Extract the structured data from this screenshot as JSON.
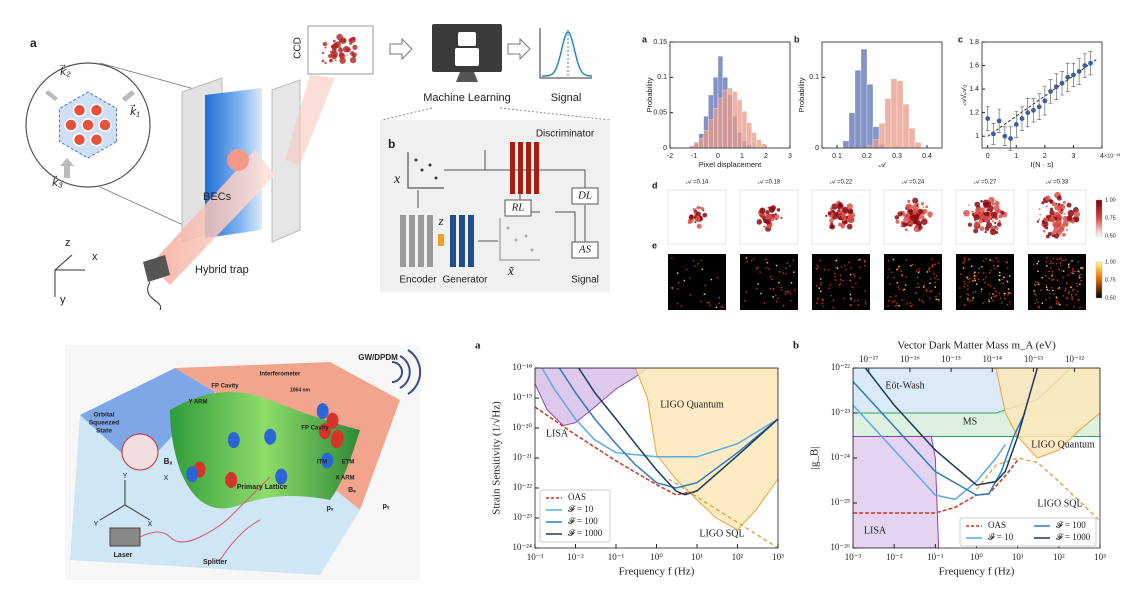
{
  "schematic": {
    "panel_a": "a",
    "k1": "k⃗₁",
    "k2": "k⃗₂",
    "k3": "k⃗₃",
    "becs": "BECs",
    "hybrid_trap": "Hybrid trap",
    "ccd": "CCD",
    "machine_learning": "Machine Learning",
    "signal": "Signal",
    "axis_z": "z",
    "axis_x": "x",
    "axis_y": "y",
    "panel_b": "b",
    "input_x": "x",
    "latent_z": "z",
    "output_x": "x̃",
    "discriminator": "Discriminator",
    "rl": "RL",
    "dl": "DL",
    "as": "AS",
    "encoder": "Encoder",
    "generator": "Generator",
    "signal_b": "Signal"
  },
  "hist_a": {
    "type": "histogram",
    "panel": "a",
    "xlabel": "Pixel displacement",
    "ylabel": "Probability",
    "xlim": [
      -2,
      3
    ],
    "xticks": [
      -2,
      -1,
      0,
      1,
      2,
      3
    ],
    "ylim": [
      0,
      0.15
    ],
    "yticks": [
      0,
      0.05,
      0.1,
      0.15
    ],
    "bins": [
      -1.2,
      -1,
      -0.8,
      -0.6,
      -0.4,
      -0.2,
      0,
      0.2,
      0.4,
      0.6,
      0.8,
      1,
      1.2,
      1.4,
      1.6,
      1.8,
      2
    ],
    "series": [
      {
        "color": "#5b6fb3",
        "values": [
          0.002,
          0.008,
          0.02,
          0.045,
          0.075,
          0.1,
          0.13,
          0.1,
          0.075,
          0.045,
          0.022,
          0.01,
          0.004,
          0.001,
          0,
          0
        ]
      },
      {
        "color": "#e8998a",
        "values": [
          0.003,
          0.007,
          0.014,
          0.025,
          0.04,
          0.056,
          0.07,
          0.082,
          0.085,
          0.08,
          0.068,
          0.052,
          0.036,
          0.022,
          0.012,
          0.006
        ]
      }
    ]
  },
  "hist_b": {
    "type": "histogram",
    "panel": "b",
    "xlabel": "𝒜",
    "ylabel": "Probability",
    "xlim": [
      0.05,
      0.45
    ],
    "xticks": [
      0.1,
      0.2,
      0.3,
      0.4
    ],
    "ylim": [
      0,
      0.15
    ],
    "yticks": [
      0,
      0.1
    ],
    "bins": [
      0.12,
      0.14,
      0.16,
      0.18,
      0.2,
      0.22,
      0.24,
      0.26,
      0.28,
      0.3,
      0.32,
      0.34,
      0.36,
      0.38
    ],
    "series": [
      {
        "color": "#5b6fb3",
        "values": [
          0.01,
          0.05,
          0.11,
          0.14,
          0.09,
          0.03,
          0.005,
          0,
          0,
          0,
          0,
          0,
          0
        ]
      },
      {
        "color": "#e8998a",
        "values": [
          0,
          0,
          0,
          0,
          0.003,
          0.012,
          0.035,
          0.07,
          0.098,
          0.095,
          0.062,
          0.028,
          0.008
        ]
      }
    ]
  },
  "scatter_c": {
    "type": "scatter",
    "panel": "c",
    "xlabel": "I(N · s)",
    "x_exponent": "×10⁻²⁸",
    "ylabel": "𝒜ₗ/𝒜₀",
    "xlim": [
      -0.2,
      4
    ],
    "xticks": [
      0,
      1,
      2,
      3,
      4
    ],
    "ylim": [
      0.9,
      1.8
    ],
    "yticks": [
      1,
      1.2,
      1.4,
      1.6,
      1.8
    ],
    "color": "#3f5e9c",
    "x": [
      0,
      0.2,
      0.4,
      0.6,
      0.8,
      1,
      1.2,
      1.4,
      1.6,
      1.8,
      2,
      2.2,
      2.4,
      2.6,
      2.8,
      3,
      3.2,
      3.4,
      3.6
    ],
    "values": [
      1.15,
      1.02,
      1.13,
      1.0,
      0.98,
      1.1,
      1.15,
      1.2,
      1.22,
      1.25,
      1.3,
      1.38,
      1.42,
      1.45,
      1.5,
      1.52,
      1.55,
      1.6,
      1.62
    ],
    "errors": [
      0.1,
      0.09,
      0.1,
      0.08,
      0.1,
      0.11,
      0.1,
      0.12,
      0.1,
      0.11,
      0.12,
      0.1,
      0.11,
      0.1,
      0.12,
      0.1,
      0.11,
      0.1,
      0.1
    ],
    "fit": {
      "x": [
        0,
        3.8
      ],
      "values": [
        1.0,
        1.65
      ]
    }
  },
  "thumbnails": {
    "panel_d": "d",
    "panel_e": "e",
    "labels": [
      "𝒜 =0.14",
      "𝒜 =0.18",
      "𝒜 =0.22",
      "𝒜 =0.24",
      "𝒜 =0.27",
      "𝒜 =0.33"
    ],
    "colorbar_d": [
      "1.00",
      "0.75",
      "0.50"
    ],
    "colorbar_e": [
      "1.00",
      "0.75",
      "0.50"
    ]
  },
  "illustration": {
    "gw": "GW/DPDM",
    "y_arm": "Y ARM",
    "fp_cavity_1": "FP Cavity",
    "interferometer": "Interferometer",
    "wavelength": "1064 nm",
    "fp_cavity_2": "FP Cavity",
    "itm": "ITM",
    "etm": "ETM",
    "x_arm": "X ARM",
    "orbital": [
      "Orbital",
      "Squeezed",
      "State"
    ],
    "bx": "Bₓ",
    "primary_lattice": "Primary Lattice",
    "bs": "Bₛ",
    "px": "pₓ",
    "py": "pᵧ",
    "laser": "Laser",
    "splitter": "Splitter",
    "axes": [
      "Y",
      "X",
      "Y",
      "X"
    ]
  },
  "strain_chart": {
    "type": "line",
    "panel": "a",
    "xlabel": "Frequency f (Hz)",
    "ylabel": "Strain Sensitivity (1/√Hz)",
    "log_x": true,
    "log_y": true,
    "xlim": [
      0.001,
      1000
    ],
    "ylim": [
      1e-24,
      1e-18
    ],
    "xticks": [
      {
        "value": 0.001,
        "label": "10⁻³"
      },
      {
        "value": 0.01,
        "label": "10⁻²"
      },
      {
        "value": 0.1,
        "label": "10⁻¹"
      },
      {
        "value": 1,
        "label": "10⁰"
      },
      {
        "value": 10,
        "label": "10¹"
      },
      {
        "value": 100,
        "label": "10²"
      },
      {
        "value": 1000,
        "label": "10³"
      }
    ],
    "yticks": [
      {
        "value": 1e-24,
        "label": "10⁻²⁴"
      },
      {
        "value": 1e-23,
        "label": "10⁻²³"
      },
      {
        "value": 1e-22,
        "label": "10⁻²²"
      },
      {
        "value": 1e-21,
        "label": "10⁻²¹"
      },
      {
        "value": 1e-20,
        "label": "10⁻²⁰"
      },
      {
        "value": 1e-19,
        "label": "10⁻¹⁹"
      },
      {
        "value": 1e-18,
        "label": "10⁻¹⁸"
      }
    ],
    "bounds": [
      {
        "name": "LISA",
        "style": "area",
        "color": "#8e44ad",
        "fill": "#d7bfe8",
        "x": [
          0.001,
          0.002,
          0.005,
          0.01,
          0.03,
          0.1,
          0.3,
          0.6,
          0.6,
          0.001
        ],
        "values": [
          3e-19,
          4e-20,
          1.2e-20,
          1.5e-20,
          5e-20,
          2e-19,
          5e-19,
          1e-18,
          1e-18,
          1e-18
        ]
      },
      {
        "name": "LIGO Quantum",
        "style": "area",
        "color": "#e8a33a",
        "fill": "#fde7b8",
        "x": [
          0.3,
          0.6,
          1,
          3,
          10,
          30,
          100,
          300,
          1000,
          1000,
          0.3
        ],
        "values": [
          1e-18,
          1e-19,
          1.3e-21,
          2e-22,
          4e-23,
          1e-23,
          4e-24,
          2e-23,
          2e-22,
          1e-18,
          1e-18
        ]
      },
      {
        "name": "LIGO SQL",
        "style": "dashed",
        "color": "#e0983c",
        "x": [
          2,
          1000
        ],
        "values": [
          2e-22,
          1e-24
        ]
      }
    ],
    "series": [
      {
        "name": "OAS",
        "color": "#c0392b",
        "dashed": true,
        "x": [
          0.001,
          0.01,
          0.1,
          1,
          3,
          6
        ],
        "values": [
          5e-20,
          6e-21,
          8e-22,
          1.3e-22,
          6e-23,
          7e-23
        ]
      },
      {
        "name": "𝓕 = 10",
        "color": "#5aaae6",
        "x": [
          0.0015,
          0.003,
          0.01,
          0.03,
          0.1,
          1,
          10,
          100,
          1000
        ],
        "values": [
          1e-18,
          2e-19,
          2e-20,
          4e-21,
          1.5e-21,
          1.1e-21,
          1.1e-21,
          3e-21,
          2e-20
        ]
      },
      {
        "name": "𝓕 = 100",
        "color": "#2f7bbf",
        "x": [
          0.004,
          0.01,
          0.03,
          0.1,
          0.3,
          1,
          3,
          10,
          100,
          1000
        ],
        "values": [
          1e-18,
          1.5e-19,
          2e-20,
          3e-21,
          6e-22,
          1.5e-22,
          1e-22,
          1.5e-22,
          1.5e-21,
          2e-20
        ]
      },
      {
        "name": "𝓕 = 1000",
        "color": "#1b3a5c",
        "x": [
          0.012,
          0.03,
          0.1,
          0.3,
          1,
          3,
          5,
          10,
          100,
          1000
        ],
        "values": [
          1e-18,
          1.5e-19,
          2e-20,
          3e-21,
          4e-22,
          8e-23,
          6e-23,
          8e-23,
          1.2e-21,
          2e-20
        ]
      }
    ]
  },
  "coupling_chart": {
    "type": "line",
    "panel": "b",
    "xlabel": "Frequency f (Hz)",
    "ylabel": "|g_B|",
    "x2label": "Vector Dark Matter Mass m_A (eV)",
    "log_x": true,
    "log_y": true,
    "xlim": [
      0.001,
      1000
    ],
    "ylim": [
      1e-26,
      1e-22
    ],
    "x2lim": [
      4.14e-18,
      4.14e-12
    ],
    "xticks": [
      {
        "value": 0.001,
        "label": "10⁻³"
      },
      {
        "value": 0.01,
        "label": "10⁻²"
      },
      {
        "value": 0.1,
        "label": "10⁻¹"
      },
      {
        "value": 1,
        "label": "10⁰"
      },
      {
        "value": 10,
        "label": "10¹"
      },
      {
        "value": 100,
        "label": "10²"
      },
      {
        "value": 1000,
        "label": "10³"
      }
    ],
    "yticks": [
      {
        "value": 1e-26,
        "label": "10⁻²⁶"
      },
      {
        "value": 1e-25,
        "label": "10⁻²⁵"
      },
      {
        "value": 1e-24,
        "label": "10⁻²⁴"
      },
      {
        "value": 1e-23,
        "label": "10⁻²³"
      },
      {
        "value": 1e-22,
        "label": "10⁻²²"
      }
    ],
    "x2ticks": [
      {
        "value": 1e-17,
        "label": "10⁻¹⁷"
      },
      {
        "value": 1e-16,
        "label": "10⁻¹⁶"
      },
      {
        "value": 1e-15,
        "label": "10⁻¹⁵"
      },
      {
        "value": 1e-14,
        "label": "10⁻¹⁴"
      },
      {
        "value": 1e-13,
        "label": "10⁻¹³"
      },
      {
        "value": 1e-12,
        "label": "10⁻¹²"
      }
    ],
    "bounds": [
      {
        "name": "Eöt-Wash",
        "style": "area",
        "color": "#3d7fb8",
        "fill": "#d3e6f6",
        "x": [
          0.001,
          1000,
          1000,
          0.001
        ],
        "values": [
          1e-22,
          1e-22,
          1e-23,
          1e-23
        ]
      },
      {
        "name": "MS",
        "style": "area",
        "color": "#3aa35a",
        "fill": "#d6efdb",
        "x": [
          0.001,
          3,
          30,
          200,
          1000,
          1000,
          0.001
        ],
        "values": [
          1e-23,
          1e-23,
          2e-23,
          1e-22,
          1e-22,
          3e-24,
          3e-24
        ]
      },
      {
        "name": "LIGO Quantum",
        "style": "area",
        "color": "#e8a33a",
        "fill": "#fde7b8",
        "x": [
          3,
          5,
          10,
          30,
          100,
          300,
          1000,
          1000,
          3
        ],
        "values": [
          1e-22,
          1e-23,
          3e-24,
          1e-24,
          1.5e-24,
          4e-24,
          1e-23,
          1e-22,
          1e-22
        ]
      },
      {
        "name": "LISA",
        "style": "area",
        "color": "#8e44ad",
        "fill": "#e0cdef",
        "x": [
          0.001,
          0.08,
          0.1,
          0.11,
          0.12,
          0.001
        ],
        "values": [
          3e-24,
          3e-24,
          1e-24,
          1e-25,
          1e-26,
          1e-26
        ]
      },
      {
        "name": "LIGO SQL",
        "style": "dashed",
        "color": "#e0983c",
        "x": [
          1,
          3,
          10,
          30,
          100,
          1000
        ],
        "values": [
          2e-25,
          7e-25,
          1e-24,
          8e-25,
          3e-25,
          4e-26
        ]
      }
    ],
    "series": [
      {
        "name": "OAS",
        "color": "#c0392b",
        "dashed": true,
        "x": [
          0.001,
          0.1,
          0.3,
          1,
          2,
          5,
          10
        ],
        "values": [
          6e-26,
          6e-26,
          8e-26,
          1.5e-25,
          1.6e-25,
          4e-25,
          9e-25
        ]
      },
      {
        "name": "𝓕 = 10",
        "color": "#5aaae6",
        "x": [
          0.001,
          0.01,
          0.1,
          0.3,
          1,
          3,
          5
        ],
        "values": [
          1.5e-23,
          1.5e-24,
          1.5e-25,
          1.2e-25,
          3e-25,
          1e-24,
          2e-24
        ]
      },
      {
        "name": "𝓕 = 100",
        "color": "#2f7bbf",
        "x": [
          0.001,
          0.01,
          0.1,
          1,
          2,
          4,
          8,
          15
        ],
        "values": [
          5e-23,
          5e-24,
          5e-25,
          1.5e-25,
          1.6e-25,
          5e-25,
          3e-24,
          1e-23
        ]
      },
      {
        "name": "𝓕 = 1000",
        "color": "#1b3a5c",
        "x": [
          0.002,
          0.01,
          0.1,
          1,
          3,
          5,
          10,
          30
        ],
        "values": [
          1e-22,
          1.5e-23,
          1.5e-24,
          2.5e-25,
          3e-25,
          5e-25,
          3e-24,
          1e-22
        ]
      }
    ]
  }
}
